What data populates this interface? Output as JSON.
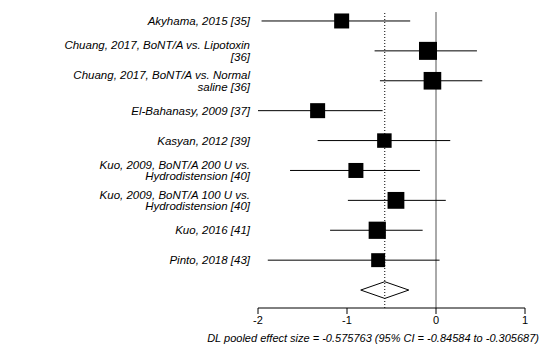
{
  "chart_data": {
    "type": "forest",
    "categories": [
      "Akyhama, 2015 [35]",
      "Chuang, 2017, BoNT/A vs. Lipotoxin [36]",
      "Chuang, 2017, BoNT/A vs. Normal saline [36]",
      "El-Bahanasy, 2009 [37]",
      "Kasyan, 2012 [39]",
      "Kuo, 2009, BoNT/A 200 U vs. Hydrodistension [40]",
      "Kuo, 2009, BoNT/A 100 U vs. Hydrodistension [40]",
      "Kuo, 2016 [41]",
      "Pinto, 2018 [43]"
    ],
    "values": [
      -1.06,
      -0.09,
      -0.04,
      -1.33,
      -0.58,
      -0.9,
      -0.45,
      -0.66,
      -0.65
    ],
    "ci_lower": [
      -1.96,
      -0.69,
      -0.63,
      -2.06,
      -1.33,
      -1.64,
      -0.99,
      -1.19,
      -1.89
    ],
    "ci_upper": [
      -0.29,
      0.46,
      0.52,
      -0.6,
      0.16,
      -0.18,
      0.11,
      -0.15,
      0.04
    ],
    "weights": [
      9,
      16,
      15,
      9,
      8,
      9,
      13,
      14,
      7
    ],
    "pooled": {
      "estimate": -0.575763,
      "ci_lower": -0.84584,
      "ci_upper": -0.305687
    },
    "null_line": 0,
    "annotation": "DL pooled effect size = -0.575763  (95% CI = -0.84584 to -0.305687)",
    "xlim": [
      -2,
      1
    ],
    "xticks": [
      -2,
      -1,
      0,
      1
    ],
    "color": "#000000",
    "marker": "square",
    "grid": false
  }
}
